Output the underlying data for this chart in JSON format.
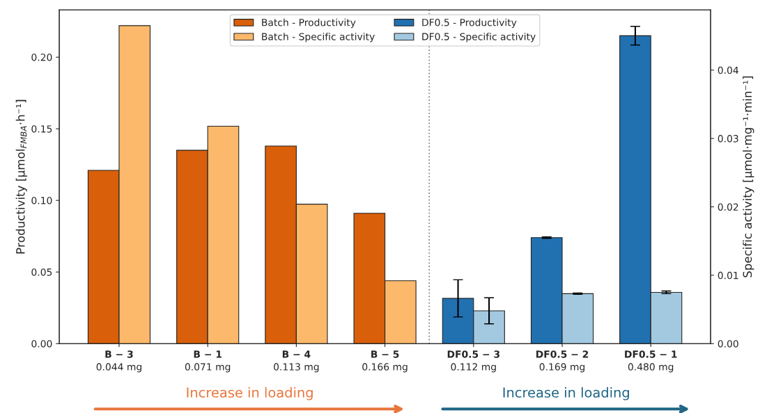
{
  "chart_data": {
    "type": "bar",
    "ylabel": "Productivity [µmol$_{FMBA}$·h⁻¹]",
    "y2label": "Specific activity [µmol·mg⁻¹·min⁻¹]",
    "categories": [
      "B − 3\n0.044 mg",
      "B − 1\n0.071 mg",
      "B − 4\n0.113 mg",
      "B − 5\n0.166 mg",
      "DF0.5 − 3\n0.112 mg",
      "DF0.5 − 2\n0.169 mg",
      "DF0.5 − 1\n0.480 mg"
    ],
    "series": [
      {
        "name": "Batch - Productivity",
        "color": "#d95f0b",
        "values": [
          0.121,
          0.135,
          0.138,
          0.091,
          null,
          null,
          null
        ]
      },
      {
        "name": "Batch - Specific activity",
        "color": "#fdb96b",
        "axis": "y2",
        "values": [
          0.0465,
          0.0318,
          0.0204,
          0.0092,
          null,
          null,
          null
        ]
      },
      {
        "name": "DF0.5 - Productivity",
        "color": "#2171b1",
        "values": [
          null,
          null,
          null,
          null,
          0.0316,
          0.074,
          0.215
        ],
        "errors": [
          null,
          null,
          null,
          null,
          0.013,
          0.0005,
          0.0065
        ]
      },
      {
        "name": "DF0.5 - Specific activity",
        "color": "#a3c9e0",
        "axis": "y2",
        "values": [
          null,
          null,
          null,
          null,
          0.0048,
          0.0073,
          0.0075
        ],
        "errors": [
          null,
          null,
          null,
          null,
          0.0019,
          0.0001,
          0.0002
        ]
      }
    ],
    "ylim": [
      0,
      0.233
    ],
    "yticks": [
      {
        "value": 0,
        "label": "0.00"
      },
      0.05,
      {
        "value": 0.1,
        "label": "0.10"
      },
      0.15,
      {
        "value": 0.2,
        "label": "0.20"
      }
    ],
    "y2lim": [
      0,
      0.0488
    ],
    "y2ticks": [
      {
        "value": 0,
        "label": "0.00"
      },
      0.01,
      0.02,
      0.03,
      0.04
    ],
    "annotations": [
      "Increase in loading",
      "Increase in loading"
    ],
    "legend": "top",
    "grid": false
  }
}
